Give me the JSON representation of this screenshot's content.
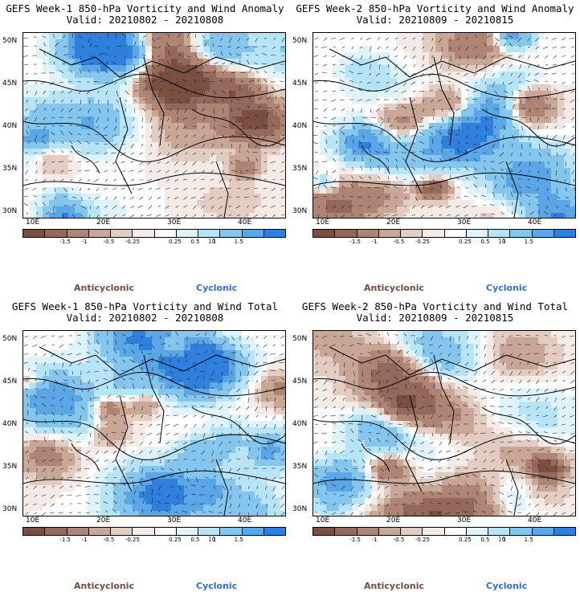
{
  "panels": [
    {
      "title": "GEFS Week-1 850-hPa Vorticity and Wind Anomaly",
      "valid": "Valid: 20210802 - 20210808"
    },
    {
      "title": "GEFS Week-2 850-hPa Vorticity and Wind Anomaly",
      "valid": "Valid: 20210809 - 20210815"
    },
    {
      "title": "GEFS Week-1 850-hPa Vorticity and Wind Total",
      "valid": "Valid: 20210802 - 20210808"
    },
    {
      "title": "GEFS Week-2 850-hPa Vorticity and Wind Total",
      "valid": "Valid: 20210809 - 20210815"
    }
  ],
  "lat_labels": [
    "50N",
    "45N",
    "40N",
    "35N",
    "30N"
  ],
  "lon_labels": [
    "10E",
    "20E",
    "30E",
    "40E"
  ],
  "colorbar": {
    "tick_labels": [
      "-1.5",
      "-1",
      "-0.5",
      "-0.25",
      "0.25",
      "0.5",
      "1",
      "1.5"
    ],
    "unit": "10",
    "colors": [
      "#7b4f3f",
      "#94685a",
      "#ae8574",
      "#c8a796",
      "#e3cdc3",
      "#f4ebe7",
      "#ffffff",
      "#def3fb",
      "#b7e4f7",
      "#85c6ee",
      "#5aa6e6",
      "#2f7fdc"
    ]
  },
  "legend": {
    "anticyclonic": "Anticyclonic",
    "cyclonic": "Cyclonic"
  },
  "colors": {
    "anticyclonic": "#8c5c4c",
    "cyclonic": "#4f93df"
  }
}
